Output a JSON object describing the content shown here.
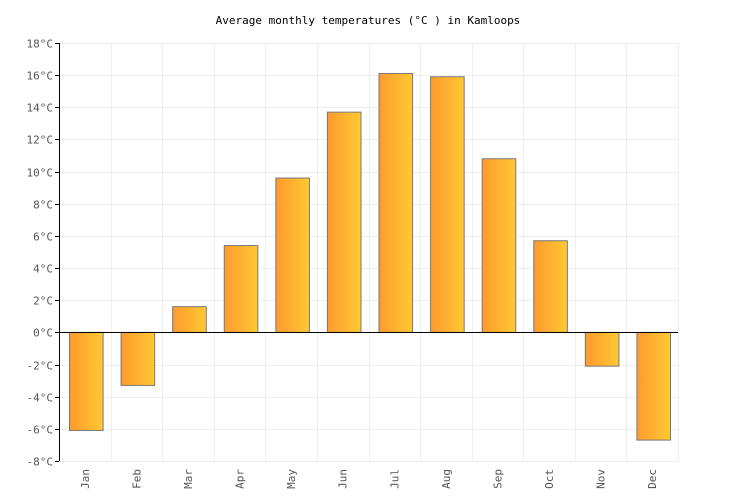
{
  "chart_data": {
    "type": "bar",
    "title": "Average monthly temperatures (°C ) in Kamloops",
    "categories": [
      "Jan",
      "Feb",
      "Mar",
      "Apr",
      "May",
      "Jun",
      "Jul",
      "Aug",
      "Sep",
      "Oct",
      "Nov",
      "Dec"
    ],
    "values": [
      -6.1,
      -3.3,
      1.6,
      5.4,
      9.6,
      13.7,
      16.1,
      15.9,
      10.8,
      5.7,
      -2.1,
      -6.7
    ],
    "ylim": [
      -8,
      18
    ],
    "yticks": [
      -8,
      -6,
      -4,
      -2,
      0,
      2,
      4,
      6,
      8,
      10,
      12,
      14,
      16,
      18
    ],
    "ytick_suffix": "°C",
    "xlabel": "",
    "ylabel": "",
    "grid": true,
    "legend": "none",
    "colors": {
      "bar_start": "#ff9a2e",
      "bar_end": "#ffc933",
      "bar_stroke": "#777777",
      "grid": "#eeeeee",
      "axis": "#000000",
      "text": "#555555"
    }
  }
}
